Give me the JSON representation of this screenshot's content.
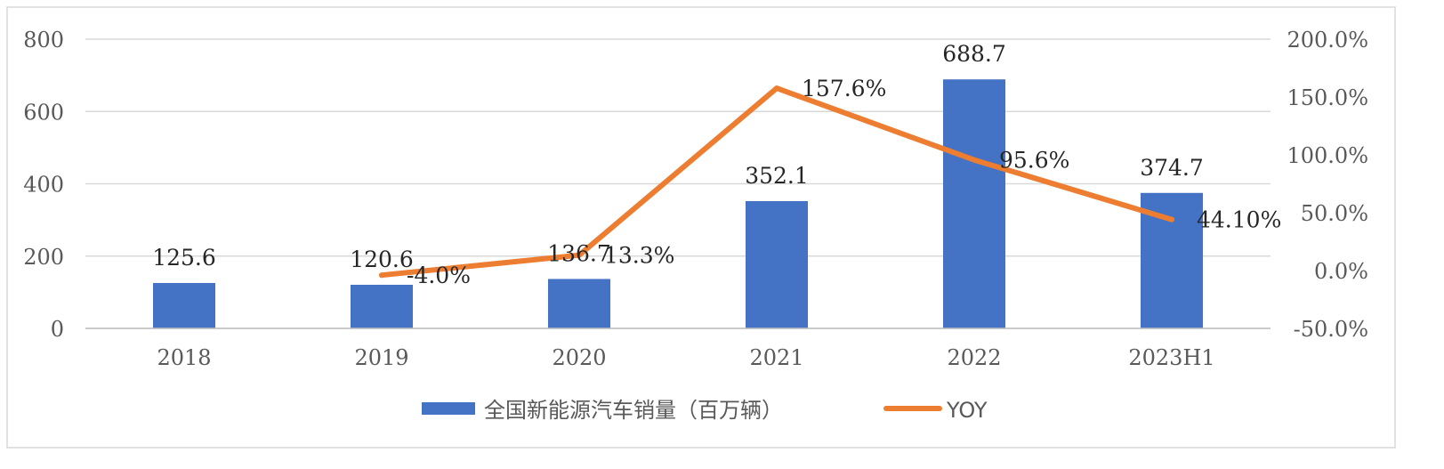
{
  "chart_data": {
    "type": "bar",
    "categories": [
      "2018",
      "2019",
      "2020",
      "2021",
      "2022",
      "2023H1"
    ],
    "series": [
      {
        "name": "全国新能源汽车销量（百万辆）",
        "type": "bar",
        "axis": "left",
        "values": [
          125.6,
          120.6,
          136.7,
          352.1,
          688.7,
          374.7
        ],
        "labels": [
          "125.6",
          "120.6",
          "136.7",
          "352.1",
          "688.7",
          "374.7"
        ],
        "color": "#4472C4"
      },
      {
        "name": "YOY",
        "type": "line",
        "axis": "right",
        "x": [
          "2019",
          "2020",
          "2021",
          "2022",
          "2023H1"
        ],
        "values": [
          -4.0,
          13.3,
          157.6,
          95.6,
          44.1
        ],
        "labels": [
          "-4.0%",
          "13.3%",
          "157.6%",
          "95.6%",
          "44.10%"
        ],
        "color": "#ED7D31"
      }
    ],
    "ylim": [
      0,
      800
    ],
    "yticks": [
      "0",
      "200",
      "400",
      "600",
      "800"
    ],
    "y2lim": [
      -50,
      200
    ],
    "y2ticks": [
      "-50.0%",
      "0.0%",
      "50.0%",
      "100.0%",
      "150.0%",
      "200.0%"
    ],
    "grid": true,
    "legend_position": "bottom"
  }
}
